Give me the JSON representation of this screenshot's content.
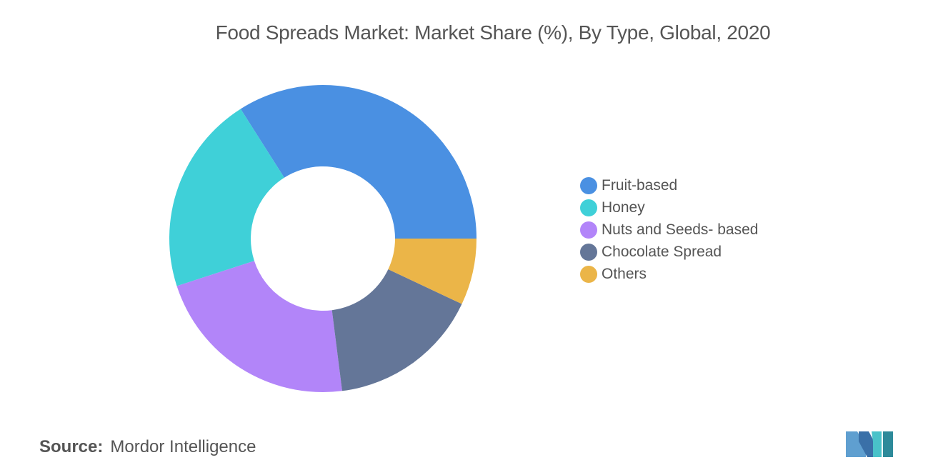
{
  "chart_data": {
    "type": "pie",
    "title": "Food Spreads Market: Market Share (%), By Type, Global, 2020",
    "donut": true,
    "start_direction": "east",
    "slices": [
      {
        "label": "Fruit-based",
        "value": 34,
        "color": "#4a90e2"
      },
      {
        "label": "Honey",
        "value": 21,
        "color": "#3fd0d8"
      },
      {
        "label": "Nuts and Seeds- based",
        "value": 22,
        "color": "#b285f9"
      },
      {
        "label": "Chocolate Spread",
        "value": 16,
        "color": "#647698"
      },
      {
        "label": "Others",
        "value": 7,
        "color": "#ebb548"
      }
    ],
    "legend_placement": "right"
  },
  "footer": {
    "source_label": "Source:",
    "source_value": "Mordor Intelligence",
    "logo_icon": "mordor-intelligence-logo"
  }
}
